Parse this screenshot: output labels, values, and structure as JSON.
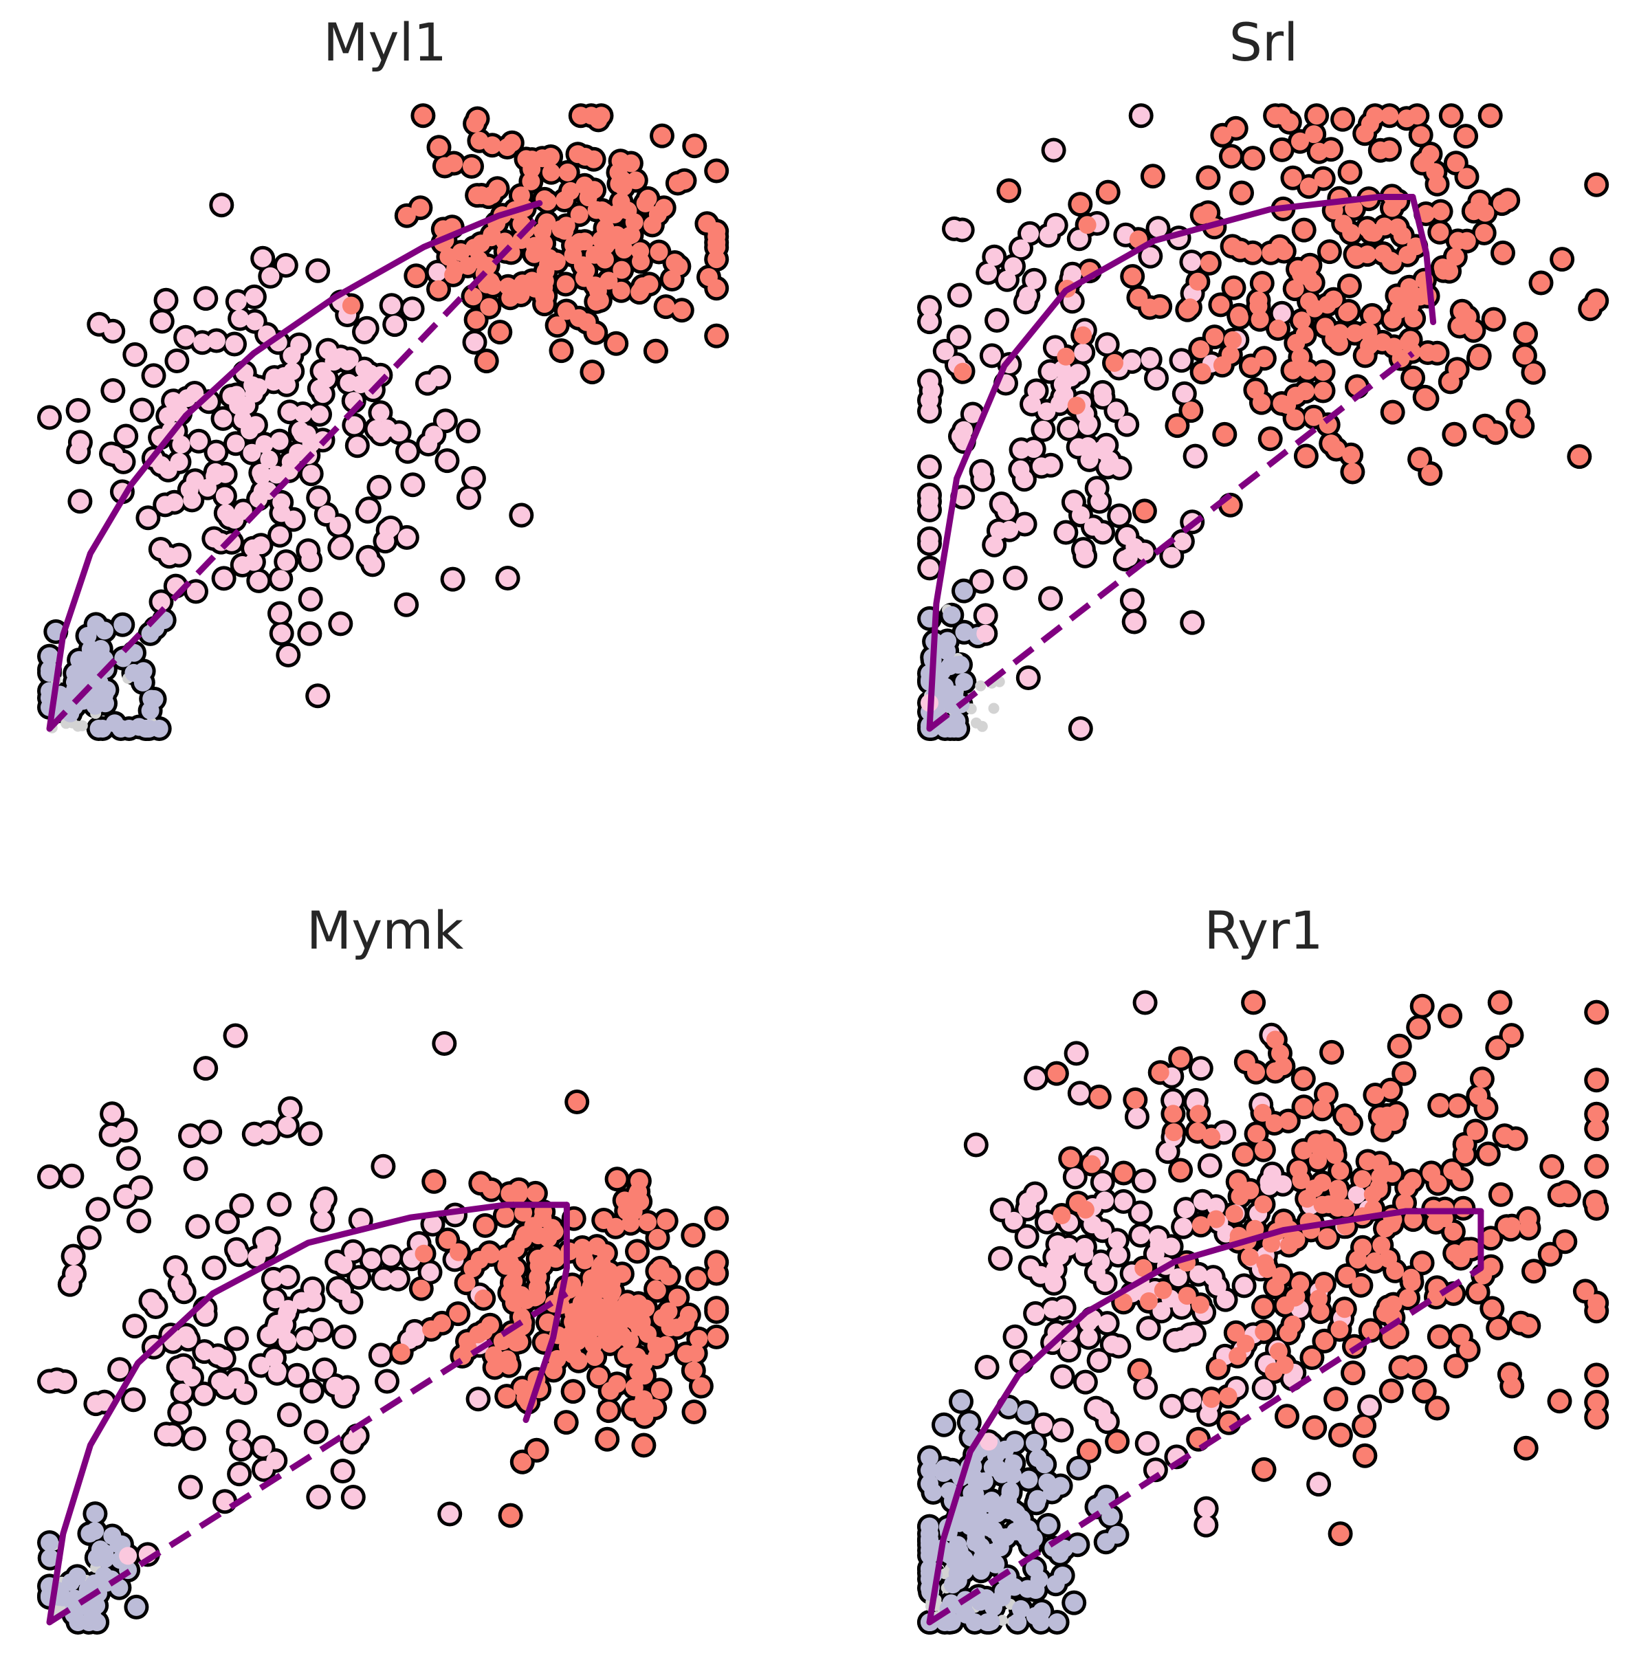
{
  "figure": {
    "layout": "2x2"
  },
  "colors": {
    "curve": "#800080",
    "outline": "#000000",
    "state_a": "#bcbcd8",
    "state_b": "#fbc8de",
    "state_c": "#fa8072",
    "background_cells": "#d3d3d3"
  },
  "chart_data": [
    {
      "type": "scatter",
      "title": "Myl1",
      "xlim": [
        0,
        1
      ],
      "ylim": [
        0,
        1
      ],
      "grid": false,
      "axes_visible": false,
      "legend": "none",
      "clusters": [
        {
          "color": "#bcbcd8",
          "count": 70,
          "center": [
            0.07,
            0.08
          ],
          "spread": [
            0.05,
            0.06
          ]
        },
        {
          "color": "#fbc8de",
          "count": 200,
          "center": [
            0.33,
            0.45
          ],
          "spread": [
            0.14,
            0.13
          ]
        },
        {
          "color": "#fa8072",
          "count": 190,
          "center": [
            0.76,
            0.79
          ],
          "spread": [
            0.11,
            0.09
          ]
        }
      ],
      "fit_curve": [
        [
          0,
          0
        ],
        [
          0.02,
          0.15
        ],
        [
          0.06,
          0.28
        ],
        [
          0.12,
          0.39
        ],
        [
          0.2,
          0.5
        ],
        [
          0.3,
          0.6
        ],
        [
          0.42,
          0.69
        ],
        [
          0.55,
          0.77
        ],
        [
          0.66,
          0.82
        ],
        [
          0.72,
          0.84
        ]
      ],
      "fit_return": [],
      "steady_state_line": [
        [
          0,
          0
        ],
        [
          0.72,
          0.82
        ]
      ]
    },
    {
      "type": "scatter",
      "title": "Srl",
      "xlim": [
        0,
        1
      ],
      "ylim": [
        0,
        1
      ],
      "grid": false,
      "axes_visible": false,
      "legend": "none",
      "clusters": [
        {
          "color": "#bcbcd8",
          "count": 40,
          "center": [
            0.02,
            0.07
          ],
          "spread": [
            0.02,
            0.07
          ]
        },
        {
          "color": "#fbc8de",
          "count": 140,
          "center": [
            0.18,
            0.5
          ],
          "spread": [
            0.12,
            0.2
          ]
        },
        {
          "color": "#fa8072",
          "count": 230,
          "center": [
            0.6,
            0.72
          ],
          "spread": [
            0.18,
            0.15
          ]
        }
      ],
      "fit_curve": [
        [
          0,
          0
        ],
        [
          0.01,
          0.2
        ],
        [
          0.04,
          0.4
        ],
        [
          0.11,
          0.58
        ],
        [
          0.2,
          0.7
        ],
        [
          0.33,
          0.78
        ],
        [
          0.5,
          0.83
        ],
        [
          0.66,
          0.85
        ],
        [
          0.71,
          0.85
        ]
      ],
      "fit_return": [
        [
          0.71,
          0.85
        ],
        [
          0.73,
          0.76
        ],
        [
          0.74,
          0.65
        ]
      ],
      "steady_state_line": [
        [
          0,
          0
        ],
        [
          0.71,
          0.6
        ]
      ]
    },
    {
      "type": "scatter",
      "title": "Mymk",
      "xlim": [
        0,
        1
      ],
      "ylim": [
        0,
        1
      ],
      "grid": false,
      "axes_visible": false,
      "legend": "none",
      "clusters": [
        {
          "color": "#bcbcd8",
          "count": 45,
          "center": [
            0.07,
            0.07
          ],
          "spread": [
            0.05,
            0.05
          ]
        },
        {
          "color": "#fbc8de",
          "count": 150,
          "center": [
            0.3,
            0.48
          ],
          "spread": [
            0.15,
            0.17
          ]
        },
        {
          "color": "#fa8072",
          "count": 230,
          "center": [
            0.78,
            0.5
          ],
          "spread": [
            0.1,
            0.1
          ]
        }
      ],
      "fit_curve": [
        [
          0,
          0
        ],
        [
          0.02,
          0.14
        ],
        [
          0.06,
          0.28
        ],
        [
          0.13,
          0.41
        ],
        [
          0.24,
          0.52
        ],
        [
          0.38,
          0.6
        ],
        [
          0.53,
          0.64
        ],
        [
          0.67,
          0.66
        ],
        [
          0.76,
          0.66
        ]
      ],
      "fit_return": [
        [
          0.76,
          0.66
        ],
        [
          0.76,
          0.56
        ],
        [
          0.74,
          0.45
        ],
        [
          0.7,
          0.32
        ]
      ],
      "steady_state_line": [
        [
          0,
          0
        ],
        [
          0.76,
          0.52
        ]
      ]
    },
    {
      "type": "scatter",
      "title": "Ryr1",
      "xlim": [
        0,
        1
      ],
      "ylim": [
        0,
        1
      ],
      "grid": false,
      "axes_visible": false,
      "legend": "none",
      "clusters": [
        {
          "color": "#bcbcd8",
          "count": 180,
          "center": [
            0.08,
            0.13
          ],
          "spread": [
            0.07,
            0.09
          ]
        },
        {
          "color": "#fbc8de",
          "count": 150,
          "center": [
            0.33,
            0.55
          ],
          "spread": [
            0.13,
            0.17
          ]
        },
        {
          "color": "#fa8072",
          "count": 260,
          "center": [
            0.63,
            0.6
          ],
          "spread": [
            0.18,
            0.17
          ]
        }
      ],
      "fit_curve": [
        [
          0,
          0
        ],
        [
          0.02,
          0.13
        ],
        [
          0.06,
          0.27
        ],
        [
          0.13,
          0.39
        ],
        [
          0.23,
          0.49
        ],
        [
          0.36,
          0.57
        ],
        [
          0.52,
          0.62
        ],
        [
          0.7,
          0.65
        ],
        [
          0.81,
          0.65
        ]
      ],
      "fit_return": [
        [
          0.81,
          0.65
        ],
        [
          0.81,
          0.56
        ]
      ],
      "steady_state_line": [
        [
          0,
          0
        ],
        [
          0.81,
          0.56
        ]
      ]
    }
  ]
}
